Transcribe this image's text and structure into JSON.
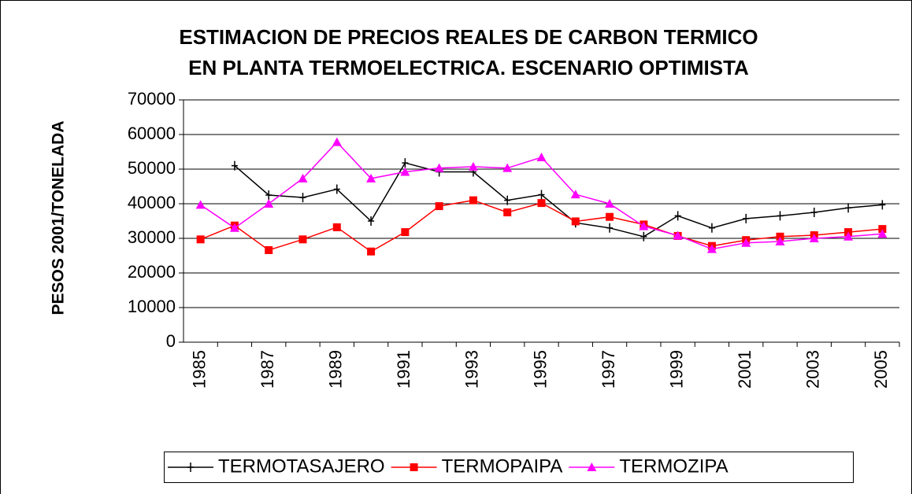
{
  "chart_data": {
    "type": "line",
    "title": [
      "ESTIMACION DE PRECIOS REALES DE CARBON TERMICO",
      "EN PLANTA TERMOELECTRICA. ESCENARIO OPTIMISTA"
    ],
    "y_label": "PESOS 2001/TONELADA",
    "categories": [
      "1985",
      null,
      "1987",
      null,
      "1989",
      null,
      "1991",
      null,
      "1993",
      null,
      "1995",
      null,
      "1997",
      null,
      "1999",
      null,
      "2001",
      null,
      "2003",
      null,
      "2005"
    ],
    "series": [
      {
        "name": "TERMOTASAJERO",
        "color": "#000000",
        "marker": "cross",
        "values": [
          null,
          51000,
          42500,
          41800,
          44200,
          35000,
          51800,
          49200,
          49200,
          41000,
          42600,
          34500,
          33000,
          30500,
          36500,
          33000,
          35700,
          36500,
          37500,
          38800,
          39700
        ]
      },
      {
        "name": "TERMOPAIPA",
        "color": "#ff0000",
        "marker": "square",
        "values": [
          29700,
          33700,
          26600,
          29700,
          33200,
          26200,
          31800,
          39300,
          41000,
          37500,
          40200,
          34900,
          36200,
          34000,
          30700,
          27800,
          29500,
          30500,
          30900,
          31800,
          32700
        ]
      },
      {
        "name": "TERMOZIPA",
        "color": "#ff00ff",
        "marker": "triangle",
        "values": [
          39700,
          33000,
          40000,
          47300,
          57800,
          47300,
          49200,
          50300,
          50700,
          50300,
          53400,
          42700,
          40000,
          33500,
          30800,
          26900,
          28700,
          29100,
          30000,
          30500,
          31300
        ]
      }
    ],
    "ylim": [
      0,
      70000
    ],
    "yticks": [
      0,
      10000,
      20000,
      30000,
      40000,
      50000,
      60000,
      70000
    ],
    "grid": true,
    "legend": "bottom"
  }
}
